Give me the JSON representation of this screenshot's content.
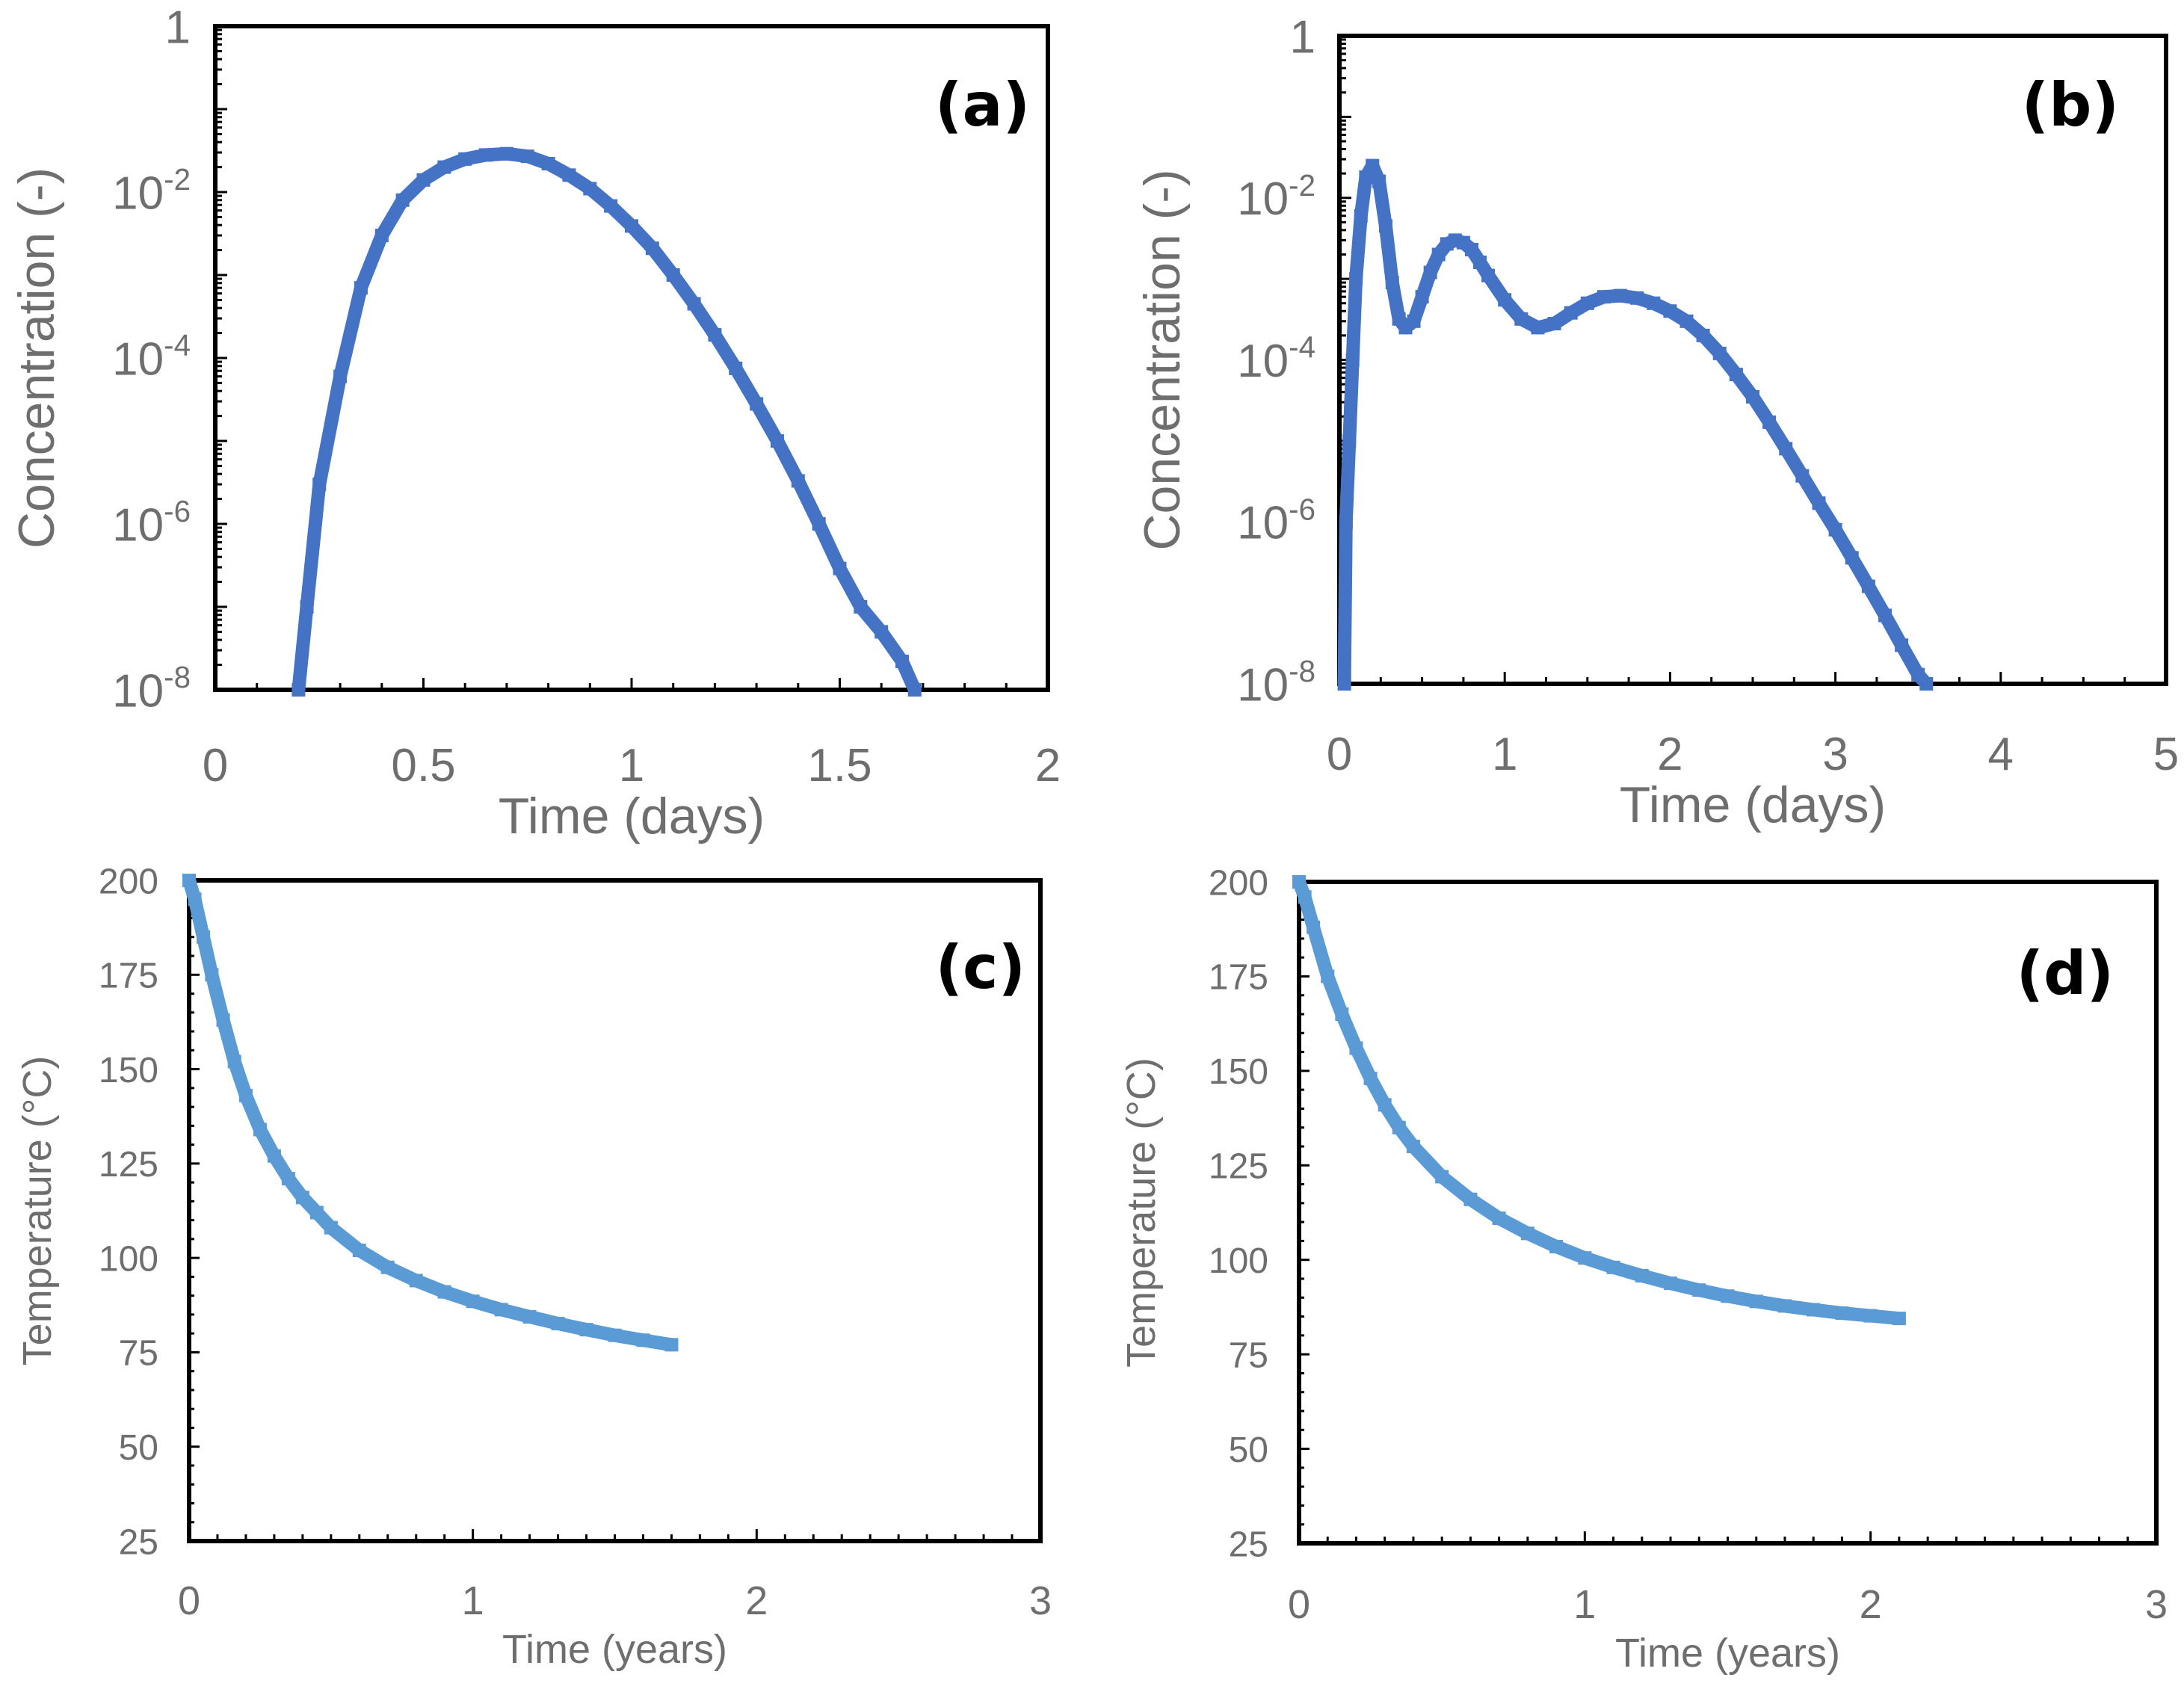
{
  "chart_data": [
    {
      "id": "a",
      "type": "scatter",
      "panel_label": "(a)",
      "xlabel": "Time (days)",
      "ylabel": "Concentration (-)",
      "x_scale": "linear",
      "y_scale": "log",
      "xlim": [
        0,
        2
      ],
      "ylim": [
        1e-08,
        1
      ],
      "x_ticks": [
        {
          "v": 0,
          "label": "0"
        },
        {
          "v": 0.5,
          "label": "0.5"
        },
        {
          "v": 1,
          "label": "1"
        },
        {
          "v": 1.5,
          "label": "1.5"
        },
        {
          "v": 2,
          "label": "2"
        }
      ],
      "y_ticks": [
        {
          "v": 1,
          "base": "1",
          "exp": ""
        },
        {
          "v": 0.01,
          "base": "10",
          "exp": "-2"
        },
        {
          "v": 0.0001,
          "base": "10",
          "exp": "-4"
        },
        {
          "v": 1e-06,
          "base": "10",
          "exp": "-6"
        },
        {
          "v": 1e-08,
          "base": "10",
          "exp": "-8"
        }
      ],
      "series": [
        {
          "name": "Concentration",
          "color": "#4472c4",
          "points": [
            [
              0.2,
              1e-08
            ],
            [
              0.22,
              1e-07
            ],
            [
              0.25,
              3e-06
            ],
            [
              0.3,
              6e-05
            ],
            [
              0.35,
              0.0007
            ],
            [
              0.4,
              0.003
            ],
            [
              0.45,
              0.008
            ],
            [
              0.5,
              0.014
            ],
            [
              0.55,
              0.02
            ],
            [
              0.6,
              0.025
            ],
            [
              0.65,
              0.028
            ],
            [
              0.7,
              0.029
            ],
            [
              0.75,
              0.027
            ],
            [
              0.8,
              0.022
            ],
            [
              0.85,
              0.016
            ],
            [
              0.9,
              0.011
            ],
            [
              0.95,
              0.0068
            ],
            [
              1.0,
              0.0039
            ],
            [
              1.05,
              0.0021
            ],
            [
              1.1,
              0.001
            ],
            [
              1.15,
              0.00045
            ],
            [
              1.2,
              0.00019
            ],
            [
              1.25,
              7.5e-05
            ],
            [
              1.3,
              2.8e-05
            ],
            [
              1.35,
              1e-05
            ],
            [
              1.4,
              3.3e-06
            ],
            [
              1.45,
              1e-06
            ],
            [
              1.5,
              2.9e-07
            ],
            [
              1.55,
              1e-07
            ],
            [
              1.6,
              5e-08
            ],
            [
              1.65,
              2.2e-08
            ],
            [
              1.68,
              1e-08
            ]
          ]
        }
      ]
    },
    {
      "id": "b",
      "type": "scatter",
      "panel_label": "(b)",
      "xlabel": "Time (days)",
      "ylabel": "Concentration (-)",
      "x_scale": "linear",
      "y_scale": "log",
      "xlim": [
        0,
        5
      ],
      "ylim": [
        1e-08,
        1
      ],
      "x_ticks": [
        {
          "v": 0,
          "label": "0"
        },
        {
          "v": 1,
          "label": "1"
        },
        {
          "v": 2,
          "label": "2"
        },
        {
          "v": 3,
          "label": "3"
        },
        {
          "v": 4,
          "label": "4"
        },
        {
          "v": 5,
          "label": "5"
        }
      ],
      "y_ticks": [
        {
          "v": 1,
          "base": "1",
          "exp": ""
        },
        {
          "v": 0.01,
          "base": "10",
          "exp": "-2"
        },
        {
          "v": 0.0001,
          "base": "10",
          "exp": "-4"
        },
        {
          "v": 1e-06,
          "base": "10",
          "exp": "-6"
        },
        {
          "v": 1e-08,
          "base": "10",
          "exp": "-8"
        }
      ],
      "series": [
        {
          "name": "Concentration",
          "color": "#4472c4",
          "points": [
            [
              0.03,
              1e-08
            ],
            [
              0.04,
              1e-06
            ],
            [
              0.06,
              1e-05
            ],
            [
              0.08,
              0.0001
            ],
            [
              0.1,
              0.001
            ],
            [
              0.13,
              0.006
            ],
            [
              0.16,
              0.018
            ],
            [
              0.2,
              0.025
            ],
            [
              0.24,
              0.016
            ],
            [
              0.28,
              0.0045
            ],
            [
              0.32,
              0.0009
            ],
            [
              0.36,
              0.00032
            ],
            [
              0.4,
              0.00025
            ],
            [
              0.45,
              0.0003
            ],
            [
              0.5,
              0.0006
            ],
            [
              0.55,
              0.0012
            ],
            [
              0.6,
              0.002
            ],
            [
              0.65,
              0.0027
            ],
            [
              0.7,
              0.003
            ],
            [
              0.75,
              0.0028
            ],
            [
              0.8,
              0.0023
            ],
            [
              0.85,
              0.0016
            ],
            [
              0.9,
              0.0011
            ],
            [
              1.0,
              0.00055
            ],
            [
              1.1,
              0.00032
            ],
            [
              1.2,
              0.00025
            ],
            [
              1.3,
              0.00028
            ],
            [
              1.4,
              0.00038
            ],
            [
              1.5,
              0.0005
            ],
            [
              1.6,
              0.0006
            ],
            [
              1.7,
              0.00062
            ],
            [
              1.8,
              0.00058
            ],
            [
              1.9,
              0.0005
            ],
            [
              2.0,
              0.0004
            ],
            [
              2.1,
              0.0003
            ],
            [
              2.2,
              0.0002
            ],
            [
              2.3,
              0.00012
            ],
            [
              2.4,
              6.6e-05
            ],
            [
              2.5,
              3.5e-05
            ],
            [
              2.6,
              1.7e-05
            ],
            [
              2.7,
              8e-06
            ],
            [
              2.8,
              3.7e-06
            ],
            [
              2.9,
              1.7e-06
            ],
            [
              3.0,
              8e-07
            ],
            [
              3.1,
              3.6e-07
            ],
            [
              3.2,
              1.6e-07
            ],
            [
              3.3,
              7e-08
            ],
            [
              3.4,
              3e-08
            ],
            [
              3.5,
              1.3e-08
            ],
            [
              3.55,
              1e-08
            ]
          ]
        }
      ]
    },
    {
      "id": "c",
      "type": "scatter",
      "panel_label": "(c)",
      "xlabel": "Time (years)",
      "ylabel": "Temperature (°C)",
      "x_scale": "linear",
      "y_scale": "linear",
      "xlim": [
        0,
        3
      ],
      "ylim": [
        25,
        200
      ],
      "x_ticks": [
        {
          "v": 0,
          "label": "0"
        },
        {
          "v": 1,
          "label": "1"
        },
        {
          "v": 2,
          "label": "2"
        },
        {
          "v": 3,
          "label": "3"
        }
      ],
      "y_ticks": [
        {
          "v": 200,
          "label": "200"
        },
        {
          "v": 175,
          "label": "175"
        },
        {
          "v": 150,
          "label": "150"
        },
        {
          "v": 125,
          "label": "125"
        },
        {
          "v": 100,
          "label": "100"
        },
        {
          "v": 75,
          "label": "75"
        },
        {
          "v": 50,
          "label": "50"
        },
        {
          "v": 25,
          "label": "25"
        }
      ],
      "series": [
        {
          "name": "Temperature",
          "color": "#5b9bd5",
          "points": [
            [
              0,
              200
            ],
            [
              0.02,
              195
            ],
            [
              0.05,
              185
            ],
            [
              0.08,
              175
            ],
            [
              0.12,
              163
            ],
            [
              0.16,
              152
            ],
            [
              0.2,
              143
            ],
            [
              0.25,
              134
            ],
            [
              0.3,
              127
            ],
            [
              0.35,
              121
            ],
            [
              0.4,
              116
            ],
            [
              0.45,
              112
            ],
            [
              0.5,
              108
            ],
            [
              0.6,
              102
            ],
            [
              0.7,
              97.5
            ],
            [
              0.8,
              94
            ],
            [
              0.9,
              91
            ],
            [
              1.0,
              88.5
            ],
            [
              1.1,
              86.3
            ],
            [
              1.2,
              84.4
            ],
            [
              1.3,
              82.6
            ],
            [
              1.4,
              81
            ],
            [
              1.5,
              79.5
            ],
            [
              1.6,
              78.2
            ],
            [
              1.7,
              77
            ]
          ]
        }
      ]
    },
    {
      "id": "d",
      "type": "scatter",
      "panel_label": "(d)",
      "xlabel": "Time (years)",
      "ylabel": "Temperature (°C)",
      "x_scale": "linear",
      "y_scale": "linear",
      "xlim": [
        0,
        3
      ],
      "ylim": [
        25,
        200
      ],
      "x_ticks": [
        {
          "v": 0,
          "label": "0"
        },
        {
          "v": 1,
          "label": "1"
        },
        {
          "v": 2,
          "label": "2"
        },
        {
          "v": 3,
          "label": "3"
        }
      ],
      "y_ticks": [
        {
          "v": 200,
          "label": "200"
        },
        {
          "v": 175,
          "label": "175"
        },
        {
          "v": 150,
          "label": "150"
        },
        {
          "v": 125,
          "label": "125"
        },
        {
          "v": 100,
          "label": "100"
        },
        {
          "v": 75,
          "label": "75"
        },
        {
          "v": 50,
          "label": "50"
        },
        {
          "v": 25,
          "label": "25"
        }
      ],
      "series": [
        {
          "name": "Temperature",
          "color": "#5b9bd5",
          "points": [
            [
              0,
              200
            ],
            [
              0.02,
              196
            ],
            [
              0.05,
              188
            ],
            [
              0.1,
              175
            ],
            [
              0.15,
              165
            ],
            [
              0.2,
              156
            ],
            [
              0.25,
              148
            ],
            [
              0.3,
              141
            ],
            [
              0.35,
              135
            ],
            [
              0.4,
              130
            ],
            [
              0.5,
              122
            ],
            [
              0.6,
              116
            ],
            [
              0.7,
              111
            ],
            [
              0.8,
              107
            ],
            [
              0.9,
              103.5
            ],
            [
              1.0,
              100.5
            ],
            [
              1.1,
              98
            ],
            [
              1.2,
              95.8
            ],
            [
              1.3,
              93.8
            ],
            [
              1.4,
              92
            ],
            [
              1.5,
              90.4
            ],
            [
              1.6,
              89
            ],
            [
              1.7,
              87.8
            ],
            [
              1.8,
              86.8
            ],
            [
              1.9,
              85.9
            ],
            [
              2.0,
              85.2
            ],
            [
              2.1,
              84.5
            ]
          ]
        }
      ]
    }
  ]
}
